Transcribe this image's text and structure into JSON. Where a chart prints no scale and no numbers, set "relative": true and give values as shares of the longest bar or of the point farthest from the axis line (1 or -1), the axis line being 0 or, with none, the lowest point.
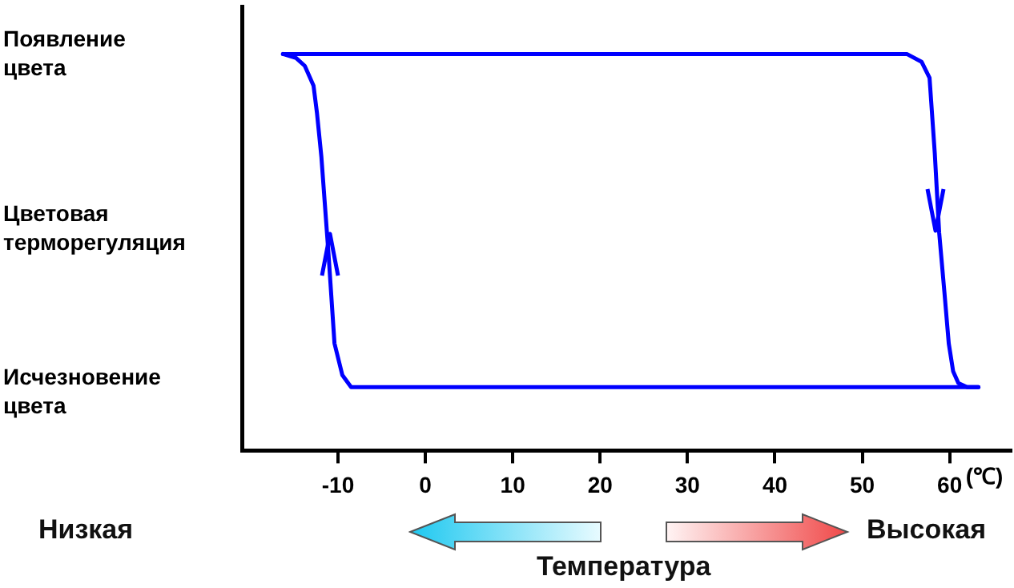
{
  "chart_data": {
    "type": "line",
    "relative": true,
    "xlabel": "Температура",
    "annotations": [
      "(℃)",
      "Низкая",
      "Высокая",
      "Появление цвета",
      "Цветовая терморегуляция",
      "Исчезновение цвета"
    ],
    "series": [
      {
        "color": "#0000ff",
        "x": [
          -16.3,
          55.1,
          56.8,
          57.7,
          58.3,
          58.8,
          59.4,
          59.9,
          60.4,
          61,
          62,
          63.3
        ],
        "values": [
          1,
          1,
          0.98,
          0.94,
          0.75,
          0.55,
          0.4,
          0.27,
          0.2,
          0.17,
          0.16,
          0.16
        ]
      },
      {
        "color": "#0000ff",
        "x": [
          63.3,
          -8.5,
          -9.5,
          -10.4,
          -11.1,
          -11.5,
          -11.9,
          -12.4,
          -12.8,
          -13.8,
          -14.8,
          -16.3
        ],
        "values": [
          0.16,
          0.16,
          0.19,
          0.27,
          0.5,
          0.62,
          0.74,
          0.85,
          0.92,
          0.97,
          0.99,
          1
        ]
      }
    ],
    "xlim": [
      -21,
      67
    ],
    "xticks": [
      -10,
      0,
      10,
      20,
      30,
      40,
      50,
      60
    ],
    "legend": false,
    "marker": "none",
    "line_style": "solid"
  }
}
